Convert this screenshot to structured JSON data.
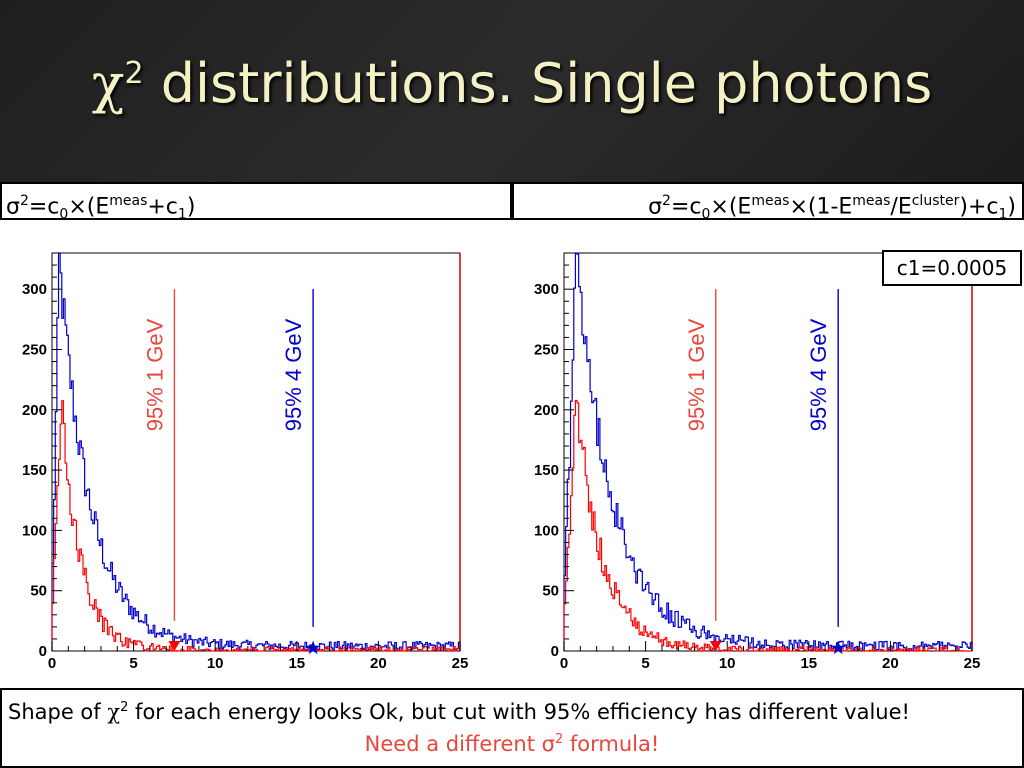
{
  "slide": {
    "title_symbol": "χ",
    "title_sup": "2",
    "title_text": " distributions. Single photons",
    "formula_left": {
      "a": "σ",
      "a_sup": "2",
      "b": "=c",
      "b_sub": "0",
      "c": "×(E",
      "c_sup": "meas",
      "d": "+c",
      "d_sub": "1",
      "e": ")"
    },
    "formula_right": {
      "a": "σ",
      "a_sup": "2",
      "b": "=c",
      "b_sub": "0",
      "c": "×(E",
      "c_sup": "meas",
      "d": "×(1-E",
      "d_sup": "meas",
      "e": "/E",
      "e_sup": "cluster",
      "f": ")+c",
      "f_sub": "1",
      "g": ")"
    },
    "c1_label": "c1=0.0005",
    "caption_line1": {
      "a": "Shape of ",
      "sym": "χ",
      "sup": "2",
      "b": " for each energy looks Ok, but cut with 95% efficiency has different value!"
    },
    "caption_line2": {
      "a": "Need a different σ",
      "sup": "2",
      "b": " formula!"
    }
  },
  "colors": {
    "red": "#ff0000",
    "blue": "#0000cc",
    "cut_red": "#e8473d",
    "cut_blue": "#0000cc",
    "title": "#f4f2c4"
  },
  "chart_data": [
    {
      "type": "histogram-step",
      "xlim": [
        0,
        25
      ],
      "ylim": [
        0,
        330
      ],
      "xticks": [
        0,
        5,
        10,
        15,
        20,
        25
      ],
      "yticks": [
        0,
        50,
        100,
        150,
        200,
        250,
        300
      ],
      "cut_lines": [
        {
          "label": "95% 1 GeV",
          "x": 7.5,
          "color": "red",
          "marker": "down-triangle"
        },
        {
          "label": "95% 4 GeV",
          "x": 16.0,
          "color": "blue",
          "marker": "star"
        }
      ],
      "series": [
        {
          "color": "blue",
          "amplitude": 318,
          "peak_x": 0.45,
          "tau": 1.9,
          "tail_level": 4
        },
        {
          "color": "red",
          "amplitude": 205,
          "peak_x": 0.6,
          "tau": 1.15,
          "tail_level": 1
        }
      ]
    },
    {
      "type": "histogram-step",
      "xlim": [
        0,
        25
      ],
      "ylim": [
        0,
        330
      ],
      "xticks": [
        0,
        5,
        10,
        15,
        20,
        25
      ],
      "yticks": [
        0,
        50,
        100,
        150,
        200,
        250,
        300
      ],
      "cut_lines": [
        {
          "label": "95% 1 GeV",
          "x": 9.3,
          "color": "red",
          "marker": "down-triangle"
        },
        {
          "label": "95% 4 GeV",
          "x": 16.8,
          "color": "blue",
          "marker": "star"
        }
      ],
      "series": [
        {
          "color": "blue",
          "amplitude": 318,
          "peak_x": 0.75,
          "tau": 2.3,
          "tail_level": 4
        },
        {
          "color": "red",
          "amplitude": 208,
          "peak_x": 0.75,
          "tau": 1.6,
          "tail_level": 1
        }
      ]
    }
  ]
}
